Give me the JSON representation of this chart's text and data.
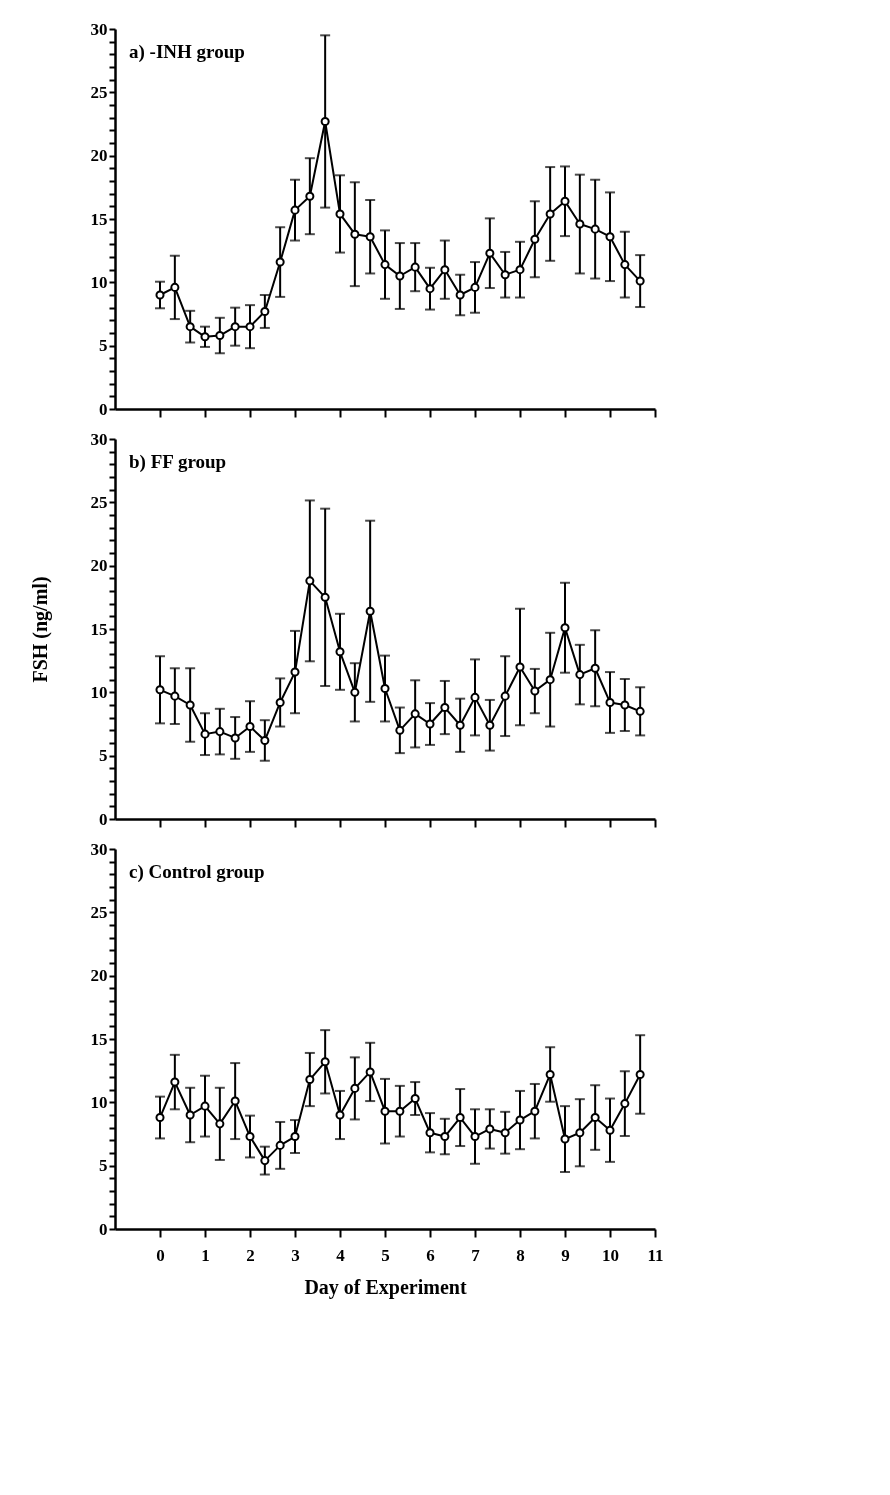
{
  "chart_data": [
    {
      "type": "line",
      "title": "a)  -INH  group",
      "x": [
        0,
        0.33,
        0.67,
        1,
        1.33,
        1.67,
        2,
        2.33,
        2.67,
        3,
        3.33,
        3.67,
        4,
        4.33,
        4.67,
        5,
        5.33,
        5.67,
        6,
        6.33,
        6.67,
        7,
        7.33,
        7.67,
        8,
        8.33,
        8.67,
        9,
        9.33,
        9.67,
        10,
        10.33,
        10.67
      ],
      "series": [
        {
          "color": "#000000",
          "values": [
            9.0,
            9.6,
            6.5,
            5.7,
            5.8,
            6.5,
            6.5,
            7.7,
            11.6,
            15.7,
            16.8,
            22.7,
            15.4,
            13.8,
            13.6,
            11.4,
            10.5,
            11.2,
            9.5,
            11.0,
            9.0,
            9.6,
            12.3,
            10.6,
            11.0,
            13.4,
            15.4,
            16.4,
            14.6,
            14.2,
            13.6,
            11.4,
            10.1
          ],
          "errors": [
            1.05,
            2.5,
            1.25,
            0.8,
            1.4,
            1.5,
            1.7,
            1.3,
            2.75,
            2.4,
            3.0,
            6.8,
            3.05,
            4.1,
            2.9,
            2.7,
            2.6,
            1.9,
            1.65,
            2.3,
            1.6,
            2.0,
            2.75,
            1.8,
            2.2,
            3.0,
            3.7,
            2.75,
            3.9,
            3.9,
            3.5,
            2.6,
            2.05
          ]
        }
      ],
      "xlim": [
        -1,
        11
      ],
      "xticks": [
        0,
        1,
        2,
        3,
        4,
        5,
        6,
        7,
        8,
        9,
        10,
        11
      ],
      "ylim": [
        0,
        30
      ],
      "yticks": [
        0,
        {
          "value": 1,
          "label": null
        },
        {
          "value": 2,
          "label": null
        },
        {
          "value": 3,
          "label": null
        },
        {
          "value": 4,
          "label": null
        },
        5,
        {
          "value": 6,
          "label": null
        },
        {
          "value": 7,
          "label": null
        },
        {
          "value": 8,
          "label": null
        },
        {
          "value": 9,
          "label": null
        },
        10,
        {
          "value": 11,
          "label": null
        },
        {
          "value": 12,
          "label": null
        },
        {
          "value": 13,
          "label": null
        },
        {
          "value": 14,
          "label": null
        },
        15,
        {
          "value": 16,
          "label": null
        },
        {
          "value": 17,
          "label": null
        },
        {
          "value": 18,
          "label": null
        },
        {
          "value": 19,
          "label": null
        },
        20,
        {
          "value": 21,
          "label": null
        },
        {
          "value": 22,
          "label": null
        },
        {
          "value": 23,
          "label": null
        },
        {
          "value": 24,
          "label": null
        },
        25,
        {
          "value": 26,
          "label": null
        },
        {
          "value": 27,
          "label": null
        },
        {
          "value": 28,
          "label": null
        },
        {
          "value": 29,
          "label": null
        },
        30
      ],
      "tick_labels": "y",
      "marker": "circle",
      "line_style": "solid",
      "grid": false
    },
    {
      "type": "line",
      "title": "b)  FF  group",
      "ylabel": "FSH  (ng/ml)",
      "x": [
        0,
        0.33,
        0.67,
        1,
        1.33,
        1.67,
        2,
        2.33,
        2.67,
        3,
        3.33,
        3.67,
        4,
        4.33,
        4.67,
        5,
        5.33,
        5.67,
        6,
        6.33,
        6.67,
        7,
        7.33,
        7.67,
        8,
        8.33,
        8.67,
        9,
        9.33,
        9.67,
        10,
        10.33,
        10.67
      ],
      "series": [
        {
          "color": "#000000",
          "values": [
            10.2,
            9.7,
            9.0,
            6.7,
            6.9,
            6.4,
            7.3,
            6.2,
            9.2,
            11.6,
            18.8,
            17.5,
            13.2,
            10.0,
            16.4,
            10.3,
            7.0,
            8.3,
            7.5,
            8.8,
            7.4,
            9.6,
            7.4,
            9.7,
            12.0,
            10.1,
            11.0,
            15.1,
            11.4,
            11.9,
            9.2,
            9.0,
            8.5
          ],
          "errors": [
            2.65,
            2.2,
            2.9,
            1.65,
            1.8,
            1.65,
            2.0,
            1.6,
            1.9,
            3.25,
            6.35,
            7.0,
            3.0,
            2.3,
            7.15,
            2.6,
            1.8,
            2.65,
            1.65,
            2.1,
            2.1,
            3.0,
            2.0,
            3.15,
            4.6,
            1.75,
            3.7,
            3.55,
            2.35,
            3.0,
            2.4,
            2.05,
            1.9
          ]
        }
      ],
      "xlim": [
        -1,
        11
      ],
      "xticks": [
        0,
        1,
        2,
        3,
        4,
        5,
        6,
        7,
        8,
        9,
        10,
        11
      ],
      "ylim": [
        0,
        30
      ],
      "yticks": [
        0,
        {
          "value": 1,
          "label": null
        },
        {
          "value": 2,
          "label": null
        },
        {
          "value": 3,
          "label": null
        },
        {
          "value": 4,
          "label": null
        },
        5,
        {
          "value": 6,
          "label": null
        },
        {
          "value": 7,
          "label": null
        },
        {
          "value": 8,
          "label": null
        },
        {
          "value": 9,
          "label": null
        },
        10,
        {
          "value": 11,
          "label": null
        },
        {
          "value": 12,
          "label": null
        },
        {
          "value": 13,
          "label": null
        },
        {
          "value": 14,
          "label": null
        },
        15,
        {
          "value": 16,
          "label": null
        },
        {
          "value": 17,
          "label": null
        },
        {
          "value": 18,
          "label": null
        },
        {
          "value": 19,
          "label": null
        },
        20,
        {
          "value": 21,
          "label": null
        },
        {
          "value": 22,
          "label": null
        },
        {
          "value": 23,
          "label": null
        },
        {
          "value": 24,
          "label": null
        },
        25,
        {
          "value": 26,
          "label": null
        },
        {
          "value": 27,
          "label": null
        },
        {
          "value": 28,
          "label": null
        },
        {
          "value": 29,
          "label": null
        },
        30
      ],
      "tick_labels": "y",
      "marker": "circle",
      "line_style": "solid",
      "grid": false
    },
    {
      "type": "line",
      "title": "c)  Control  group",
      "xlabel": "Day  of  Experiment",
      "x": [
        0,
        0.33,
        0.67,
        1,
        1.33,
        1.67,
        2,
        2.33,
        2.67,
        3,
        3.33,
        3.67,
        4,
        4.33,
        4.67,
        5,
        5.33,
        5.67,
        6,
        6.33,
        6.67,
        7,
        7.33,
        7.67,
        8,
        8.33,
        8.67,
        9,
        9.33,
        9.67,
        10,
        10.33,
        10.67
      ],
      "series": [
        {
          "color": "#000000",
          "values": [
            8.8,
            11.6,
            9.0,
            9.7,
            8.3,
            10.1,
            7.3,
            5.4,
            6.6,
            7.3,
            11.8,
            13.2,
            9.0,
            11.1,
            12.4,
            9.3,
            9.3,
            10.3,
            7.6,
            7.3,
            8.8,
            7.3,
            7.9,
            7.6,
            8.6,
            9.3,
            12.2,
            7.1,
            7.6,
            8.8,
            7.8,
            9.9,
            12.2
          ],
          "errors": [
            1.65,
            2.15,
            2.15,
            2.4,
            2.85,
            3.0,
            1.65,
            1.1,
            1.85,
            1.3,
            2.1,
            2.5,
            1.9,
            2.45,
            2.3,
            2.55,
            2.0,
            1.3,
            1.55,
            1.4,
            2.25,
            2.15,
            1.55,
            1.65,
            2.3,
            2.15,
            2.15,
            2.6,
            2.65,
            2.55,
            2.5,
            2.55,
            3.1
          ]
        }
      ],
      "xlim": [
        -1,
        11
      ],
      "xticks": [
        0,
        1,
        2,
        3,
        4,
        5,
        6,
        7,
        8,
        9,
        10,
        11
      ],
      "ylim": [
        0,
        30
      ],
      "yticks": [
        0,
        {
          "value": 1,
          "label": null
        },
        {
          "value": 2,
          "label": null
        },
        {
          "value": 3,
          "label": null
        },
        {
          "value": 4,
          "label": null
        },
        5,
        {
          "value": 6,
          "label": null
        },
        {
          "value": 7,
          "label": null
        },
        {
          "value": 8,
          "label": null
        },
        {
          "value": 9,
          "label": null
        },
        10,
        {
          "value": 11,
          "label": null
        },
        {
          "value": 12,
          "label": null
        },
        {
          "value": 13,
          "label": null
        },
        {
          "value": 14,
          "label": null
        },
        15,
        {
          "value": 16,
          "label": null
        },
        {
          "value": 17,
          "label": null
        },
        {
          "value": 18,
          "label": null
        },
        {
          "value": 19,
          "label": null
        },
        20,
        {
          "value": 21,
          "label": null
        },
        {
          "value": 22,
          "label": null
        },
        {
          "value": 23,
          "label": null
        },
        {
          "value": 24,
          "label": null
        },
        25,
        {
          "value": 26,
          "label": null
        },
        {
          "value": 27,
          "label": null
        },
        {
          "value": 28,
          "label": null
        },
        {
          "value": 29,
          "label": null
        },
        30
      ],
      "marker": "circle",
      "line_style": "solid",
      "grid": false
    }
  ]
}
